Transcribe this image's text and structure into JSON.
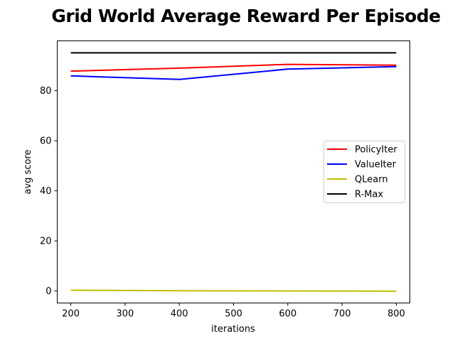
{
  "chart_data": {
    "type": "line",
    "title": "Grid World Average Reward Per Episode",
    "xlabel": "iterations",
    "ylabel": "avg score",
    "x": [
      200,
      400,
      600,
      800
    ],
    "xticks": [
      200,
      300,
      400,
      500,
      600,
      700,
      800
    ],
    "yticks": [
      0,
      20,
      40,
      60,
      80
    ],
    "xlim": [
      175,
      825
    ],
    "ylim": [
      -4.8,
      99.9
    ],
    "grid": false,
    "legend_position": "center-right",
    "series": [
      {
        "name": "PolicyIter",
        "color": "#ff0000",
        "values": [
          87.8,
          89.0,
          90.5,
          90.2
        ]
      },
      {
        "name": "ValueIter",
        "color": "#0000ff",
        "values": [
          85.9,
          84.5,
          88.6,
          89.6
        ]
      },
      {
        "name": "QLearn",
        "color": "#bfbf00",
        "values": [
          0.3,
          0.1,
          0.0,
          -0.1
        ]
      },
      {
        "name": "R-Max",
        "color": "#000000",
        "values": [
          95.1,
          95.1,
          95.1,
          95.1
        ]
      }
    ]
  }
}
